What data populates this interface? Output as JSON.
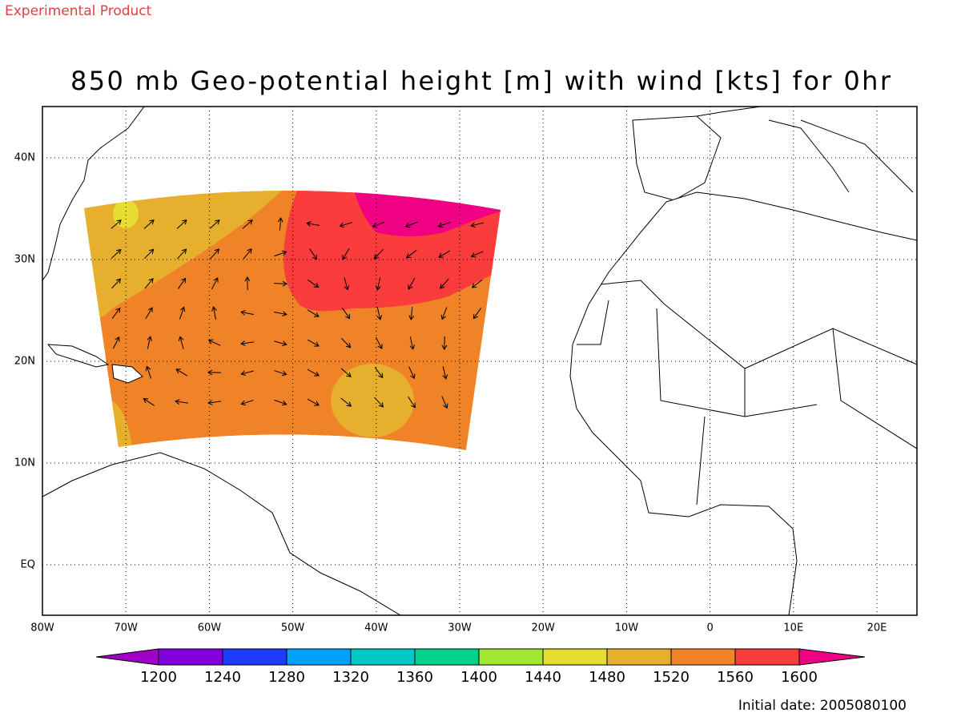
{
  "header": {
    "note": "Experimental Product"
  },
  "title": "850 mb Geo-potential height [m] with wind [kts] for 0hr",
  "map": {
    "lon_labels": [
      "80W",
      "70W",
      "60W",
      "50W",
      "40W",
      "30W",
      "20W",
      "10W",
      "0",
      "10E",
      "20E"
    ],
    "lat_labels": [
      "40N",
      "30N",
      "20N",
      "10N",
      "EQ"
    ]
  },
  "colorbar": {
    "labels": [
      1200,
      1240,
      1280,
      1320,
      1360,
      1400,
      1440,
      1480,
      1520,
      1560,
      1600
    ],
    "colors": [
      "#a000c8",
      "#8200dc",
      "#1e3cff",
      "#00a0ff",
      "#00c8c8",
      "#00d28c",
      "#a0e632",
      "#e6dc32",
      "#e6af2d",
      "#f08228",
      "#fa3c3c",
      "#f00082"
    ]
  },
  "footer": {
    "initial_date": "Initial date: 2005080100"
  }
}
